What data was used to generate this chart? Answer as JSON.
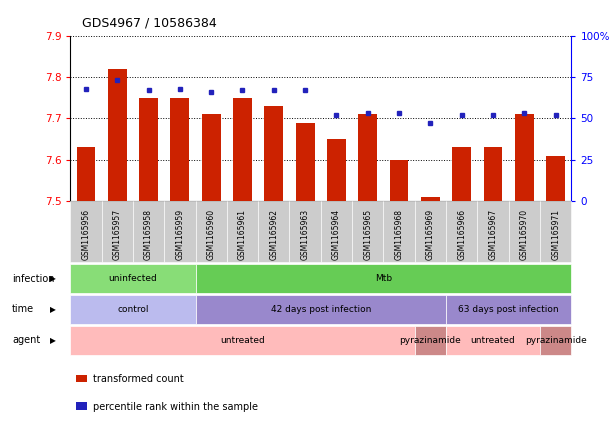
{
  "title": "GDS4967 / 10586384",
  "samples": [
    "GSM1165956",
    "GSM1165957",
    "GSM1165958",
    "GSM1165959",
    "GSM1165960",
    "GSM1165961",
    "GSM1165962",
    "GSM1165963",
    "GSM1165964",
    "GSM1165965",
    "GSM1165968",
    "GSM1165969",
    "GSM1165966",
    "GSM1165967",
    "GSM1165970",
    "GSM1165971"
  ],
  "bar_values": [
    7.63,
    7.82,
    7.75,
    7.75,
    7.71,
    7.75,
    7.73,
    7.69,
    7.65,
    7.71,
    7.6,
    7.51,
    7.63,
    7.63,
    7.71,
    7.61
  ],
  "dot_values": [
    68,
    73,
    67,
    68,
    66,
    67,
    67,
    67,
    52,
    53,
    53,
    47,
    52,
    52,
    53,
    52
  ],
  "ylim_left": [
    7.5,
    7.9
  ],
  "yticks_left": [
    7.5,
    7.6,
    7.7,
    7.8,
    7.9
  ],
  "ylim_right": [
    0,
    100
  ],
  "yticks_right": [
    0,
    25,
    50,
    75,
    100
  ],
  "ytick_right_labels": [
    "0",
    "25",
    "50",
    "75",
    "100%"
  ],
  "bar_color": "#cc2200",
  "dot_color": "#2222bb",
  "infection_labels": [
    {
      "text": "uninfected",
      "start": 0,
      "end": 4,
      "color": "#88dd77"
    },
    {
      "text": "Mtb",
      "start": 4,
      "end": 16,
      "color": "#66cc55"
    }
  ],
  "time_labels": [
    {
      "text": "control",
      "start": 0,
      "end": 4,
      "color": "#bbbbee"
    },
    {
      "text": "42 days post infection",
      "start": 4,
      "end": 12,
      "color": "#9988cc"
    },
    {
      "text": "63 days post infection",
      "start": 12,
      "end": 16,
      "color": "#9988cc"
    }
  ],
  "agent_labels": [
    {
      "text": "untreated",
      "start": 0,
      "end": 11,
      "color": "#ffbbbb"
    },
    {
      "text": "pyrazinamide",
      "start": 11,
      "end": 12,
      "color": "#cc8888"
    },
    {
      "text": "untreated",
      "start": 12,
      "end": 15,
      "color": "#ffbbbb"
    },
    {
      "text": "pyrazinamide",
      "start": 15,
      "end": 16,
      "color": "#cc8888"
    }
  ],
  "row_labels": [
    "infection",
    "time",
    "agent"
  ],
  "legend_items": [
    {
      "color": "#cc2200",
      "label": "transformed count"
    },
    {
      "color": "#2222bb",
      "label": "percentile rank within the sample"
    }
  ],
  "sample_bg_color": "#cccccc",
  "chart_bg_color": "#ffffff"
}
